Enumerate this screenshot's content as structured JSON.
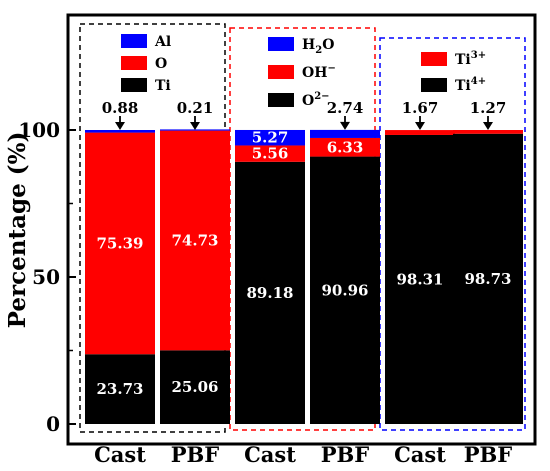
{
  "chart_data": {
    "type": "bar",
    "stacked": true,
    "ylabel": "Percentage (%)",
    "ylim": [
      0,
      100
    ],
    "yticks": [
      0,
      50,
      100
    ],
    "categories": [
      "Cast",
      "PBF",
      "Cast",
      "PBF",
      "Cast",
      "PBF"
    ],
    "colors": {
      "red": "#ff0000",
      "blue": "#0000ff",
      "black": "#000000"
    },
    "groups": [
      {
        "border_color": "#000000",
        "legend": [
          {
            "label": "Al",
            "color": "#0000ff"
          },
          {
            "label": "O",
            "color": "#ff0000"
          },
          {
            "label": "Ti",
            "color": "#000000"
          }
        ],
        "bars": [
          {
            "category": "Cast",
            "segments": [
              {
                "series": "Ti",
                "value": 23.73,
                "color": "#000000",
                "label": "23.73",
                "label_color": "#ffffff"
              },
              {
                "series": "O",
                "value": 75.39,
                "color": "#ff0000",
                "label": "75.39",
                "label_color": "#ffffff"
              },
              {
                "series": "Al",
                "value": 0.88,
                "color": "#0000ff",
                "label": "0.88",
                "label_color": "#000000",
                "label_outside": true
              }
            ]
          },
          {
            "category": "PBF",
            "segments": [
              {
                "series": "Ti",
                "value": 25.06,
                "color": "#000000",
                "label": "25.06",
                "label_color": "#ffffff"
              },
              {
                "series": "O",
                "value": 74.73,
                "color": "#ff0000",
                "label": "74.73",
                "label_color": "#ffffff"
              },
              {
                "series": "Al",
                "value": 0.21,
                "color": "#0000ff",
                "label": "0.21",
                "label_color": "#000000",
                "label_outside": true
              }
            ]
          }
        ]
      },
      {
        "border_color": "#ff0000",
        "legend": [
          {
            "label": "H",
            "sub": "2",
            "tail": "O",
            "color": "#0000ff"
          },
          {
            "label": "OH",
            "sup": "−",
            "color": "#ff0000"
          },
          {
            "label": "O",
            "sup": "2−",
            "color": "#000000"
          }
        ],
        "bars": [
          {
            "category": "Cast",
            "segments": [
              {
                "series": "O2-",
                "value": 89.18,
                "color": "#000000",
                "label": "89.18",
                "label_color": "#ffffff"
              },
              {
                "series": "OH-",
                "value": 5.56,
                "color": "#ff0000",
                "label": "5.56",
                "label_color": "#ffffff"
              },
              {
                "series": "H2O",
                "value": 5.27,
                "color": "#0000ff",
                "label": "5.27",
                "label_color": "#ffffff"
              }
            ]
          },
          {
            "category": "PBF",
            "segments": [
              {
                "series": "O2-",
                "value": 90.96,
                "color": "#000000",
                "label": "90.96",
                "label_color": "#ffffff"
              },
              {
                "series": "OH-",
                "value": 6.33,
                "color": "#ff0000",
                "label": "6.33",
                "label_color": "#ffffff"
              },
              {
                "series": "H2O",
                "value": 2.74,
                "color": "#0000ff",
                "label": "2.74",
                "label_color": "#000000",
                "label_outside": true
              }
            ]
          }
        ]
      },
      {
        "border_color": "#0000ff",
        "legend": [
          {
            "label": "Ti",
            "sup": "3+",
            "color": "#ff0000"
          },
          {
            "label": "Ti",
            "sup": "4+",
            "color": "#000000"
          }
        ],
        "bars": [
          {
            "category": "Cast",
            "segments": [
              {
                "series": "Ti4+",
                "value": 98.31,
                "color": "#000000",
                "label": "98.31",
                "label_color": "#ffffff"
              },
              {
                "series": "Ti3+",
                "value": 1.67,
                "color": "#ff0000",
                "label": "1.67",
                "label_color": "#000000",
                "label_outside": true
              }
            ]
          },
          {
            "category": "PBF",
            "segments": [
              {
                "series": "Ti4+",
                "value": 98.73,
                "color": "#000000",
                "label": "98.73",
                "label_color": "#ffffff"
              },
              {
                "series": "Ti3+",
                "value": 1.27,
                "color": "#ff0000",
                "label": "1.27",
                "label_color": "#000000",
                "label_outside": true
              }
            ]
          }
        ]
      }
    ]
  }
}
